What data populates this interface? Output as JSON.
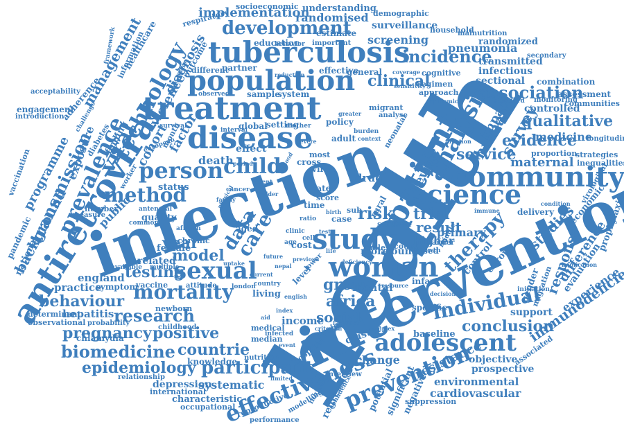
{
  "cloud": {
    "color": "#3f7fbd",
    "words": [
      {
        "text": "health"
      },
      {
        "text": "infection"
      },
      {
        "text": "intervention"
      },
      {
        "text": "treatment"
      },
      {
        "text": "tuberculosis"
      },
      {
        "text": "population"
      },
      {
        "text": "disease"
      },
      {
        "text": "antiretroviral"
      },
      {
        "text": "patient"
      },
      {
        "text": "community"
      },
      {
        "text": "woman"
      },
      {
        "text": "study"
      },
      {
        "text": "science"
      },
      {
        "text": "adolescent"
      },
      {
        "text": "sexual"
      },
      {
        "text": "mortality"
      },
      {
        "text": "person"
      },
      {
        "text": "child"
      },
      {
        "text": "method"
      },
      {
        "text": "development"
      },
      {
        "text": "analysis"
      },
      {
        "text": "prevalence"
      },
      {
        "text": "technology"
      },
      {
        "text": "transmission"
      },
      {
        "text": "effectiveness"
      },
      {
        "text": "prevention"
      },
      {
        "text": "participant"
      },
      {
        "text": "research"
      },
      {
        "text": "individual"
      },
      {
        "text": "biomedicine"
      },
      {
        "text": "epidemiology"
      },
      {
        "text": "therapy"
      },
      {
        "text": "viral"
      },
      {
        "text": "incidence"
      },
      {
        "text": "association"
      },
      {
        "text": "qualitative"
      },
      {
        "text": "evidence"
      },
      {
        "text": "service"
      },
      {
        "text": "conclusion"
      },
      {
        "text": "behaviour"
      },
      {
        "text": "pregnancy"
      },
      {
        "text": "positive"
      },
      {
        "text": "countrie"
      },
      {
        "text": "testing"
      },
      {
        "text": "group"
      },
      {
        "text": "africa"
      },
      {
        "text": "social"
      },
      {
        "text": "care"
      },
      {
        "text": "data"
      },
      {
        "text": "risk"
      },
      {
        "text": "trial"
      },
      {
        "text": "result"
      },
      {
        "text": "year"
      },
      {
        "text": "model"
      },
      {
        "text": "immunodeficiency"
      },
      {
        "text": "experience"
      },
      {
        "text": "response"
      },
      {
        "text": "difference"
      },
      {
        "text": "studies"
      },
      {
        "text": "survey"
      },
      {
        "text": "human"
      },
      {
        "text": "review"
      },
      {
        "text": "clinical"
      },
      {
        "text": "management"
      },
      {
        "text": "programme"
      },
      {
        "text": "background"
      },
      {
        "text": "exposure"
      },
      {
        "text": "violence"
      },
      {
        "text": "diagnosis"
      },
      {
        "text": "cohort"
      },
      {
        "text": "factor"
      },
      {
        "text": "implementation"
      },
      {
        "text": "randomised"
      },
      {
        "text": "understanding"
      },
      {
        "text": "surveillance"
      },
      {
        "text": "screening"
      },
      {
        "text": "pneumonia"
      },
      {
        "text": "maternal"
      },
      {
        "text": "medicine"
      },
      {
        "text": "controlled"
      },
      {
        "text": "impact"
      },
      {
        "text": "sectional"
      },
      {
        "text": "infectious"
      },
      {
        "text": "transmitted"
      },
      {
        "text": "systematic"
      },
      {
        "text": "change"
      },
      {
        "text": "resistance"
      },
      {
        "text": "cardiovascular"
      },
      {
        "text": "environmental"
      },
      {
        "text": "regression"
      },
      {
        "text": "hepatitis"
      },
      {
        "text": "england"
      },
      {
        "text": "practice"
      },
      {
        "text": "mental"
      },
      {
        "text": "income"
      },
      {
        "text": "cluster"
      },
      {
        "text": "primary"
      },
      {
        "text": "higher"
      },
      {
        "text": "control"
      },
      {
        "text": "europe"
      },
      {
        "text": "public"
      },
      {
        "text": "quality"
      },
      {
        "text": "related"
      },
      {
        "text": "symptom"
      },
      {
        "text": "vaccine"
      },
      {
        "text": "female"
      },
      {
        "text": "depression"
      },
      {
        "text": "knowledge"
      },
      {
        "text": "characteristic"
      },
      {
        "text": "international"
      },
      {
        "text": "occupational"
      },
      {
        "text": "reproductive"
      },
      {
        "text": "performance"
      },
      {
        "text": "modelling"
      },
      {
        "text": "death"
      },
      {
        "text": "effect"
      },
      {
        "text": "drug"
      },
      {
        "text": "more"
      },
      {
        "text": "young"
      },
      {
        "text": "cost"
      },
      {
        "text": "hospital"
      },
      {
        "text": "design"
      },
      {
        "text": "negative"
      },
      {
        "text": "potential"
      },
      {
        "text": "significant"
      },
      {
        "text": "suppression"
      },
      {
        "text": "prospective"
      },
      {
        "text": "objective"
      },
      {
        "text": "baseline"
      },
      {
        "text": "specific"
      },
      {
        "text": "support"
      },
      {
        "text": "gender"
      },
      {
        "text": "migration"
      },
      {
        "text": "associated"
      },
      {
        "text": "evaluation"
      },
      {
        "text": "prophylaxis"
      },
      {
        "text": "economic"
      },
      {
        "text": "delivery"
      },
      {
        "text": "virological"
      },
      {
        "text": "inequalities"
      },
      {
        "text": "strategies"
      },
      {
        "text": "proportion"
      },
      {
        "text": "longitudinal"
      },
      {
        "text": "communities"
      },
      {
        "text": "assessment"
      },
      {
        "text": "monitoring"
      },
      {
        "text": "combination"
      },
      {
        "text": "secondary"
      },
      {
        "text": "randomized"
      },
      {
        "text": "malnutrition"
      },
      {
        "text": "household"
      },
      {
        "text": "demographic"
      },
      {
        "text": "socioeconomic"
      },
      {
        "text": "education"
      },
      {
        "text": "estimate"
      },
      {
        "text": "respiratory"
      },
      {
        "text": "important"
      },
      {
        "text": "behavior"
      },
      {
        "text": "effective"
      },
      {
        "text": "general"
      },
      {
        "text": "cognitive"
      },
      {
        "text": "regimen"
      },
      {
        "text": "approach"
      },
      {
        "text": "partner"
      },
      {
        "text": "different"
      },
      {
        "text": "sample"
      },
      {
        "text": "system"
      },
      {
        "text": "setting"
      },
      {
        "text": "global"
      },
      {
        "text": "policy"
      },
      {
        "text": "adult"
      },
      {
        "text": "burden"
      },
      {
        "text": "most"
      },
      {
        "text": "virus"
      },
      {
        "text": "cross"
      },
      {
        "text": "status"
      },
      {
        "text": "number"
      },
      {
        "text": "aged"
      },
      {
        "text": "chronic"
      },
      {
        "text": "african"
      },
      {
        "text": "cancer"
      },
      {
        "text": "rural"
      },
      {
        "text": "level"
      },
      {
        "text": "lower"
      },
      {
        "text": "living"
      },
      {
        "text": "london"
      },
      {
        "text": "newborn"
      },
      {
        "text": "chlamydia"
      },
      {
        "text": "observational"
      },
      {
        "text": "determinant"
      },
      {
        "text": "national"
      },
      {
        "text": "pandemic"
      },
      {
        "text": "vaccination"
      },
      {
        "text": "engagement"
      },
      {
        "text": "introduction"
      },
      {
        "text": "acceptability"
      },
      {
        "text": "adherence"
      },
      {
        "text": "healthcare"
      },
      {
        "text": "information"
      },
      {
        "text": "outcome"
      },
      {
        "text": "finding"
      },
      {
        "text": "diabetes"
      },
      {
        "text": "worker"
      },
      {
        "text": "nutrition"
      },
      {
        "text": "relationship"
      },
      {
        "text": "month"
      },
      {
        "text": "case"
      },
      {
        "text": "rate"
      },
      {
        "text": "time"
      },
      {
        "text": "score"
      },
      {
        "text": "neonatal"
      },
      {
        "text": "infant"
      },
      {
        "text": "migrant"
      },
      {
        "text": "analyse"
      },
      {
        "text": "median"
      },
      {
        "text": "medical"
      },
      {
        "text": "infected"
      },
      {
        "text": "interview"
      },
      {
        "text": "inhibitor"
      },
      {
        "text": "confidence"
      },
      {
        "text": "childhood"
      },
      {
        "text": "probability"
      },
      {
        "text": "measure"
      },
      {
        "text": "available"
      },
      {
        "text": "multiple"
      },
      {
        "text": "attitude"
      },
      {
        "text": "country"
      },
      {
        "text": "sub"
      },
      {
        "text": "saharan"
      },
      {
        "text": "male"
      },
      {
        "text": "count"
      },
      {
        "text": "based"
      },
      {
        "text": "middle"
      },
      {
        "text": "barrier"
      },
      {
        "text": "growth"
      },
      {
        "text": "reduction"
      },
      {
        "text": "increase"
      },
      {
        "text": "observed"
      },
      {
        "text": "survival"
      },
      {
        "text": "european"
      },
      {
        "text": "antenatal"
      },
      {
        "text": "common"
      },
      {
        "text": "framework"
      },
      {
        "text": "challenge"
      },
      {
        "text": "interval"
      },
      {
        "text": "mother"
      },
      {
        "text": "greater"
      },
      {
        "text": "coverage"
      },
      {
        "text": "sensitivity"
      },
      {
        "text": "epidemic"
      },
      {
        "text": "standard"
      },
      {
        "text": "implication"
      },
      {
        "text": "condition"
      },
      {
        "text": "immune"
      },
      {
        "text": "initiation"
      },
      {
        "text": "future"
      },
      {
        "text": "uptake"
      },
      {
        "text": "birth"
      },
      {
        "text": "test"
      },
      {
        "text": "ratio"
      },
      {
        "text": "clinic"
      },
      {
        "text": "cell"
      },
      {
        "text": "age"
      },
      {
        "text": "resource"
      },
      {
        "text": "report"
      },
      {
        "text": "context"
      },
      {
        "text": "severe"
      },
      {
        "text": "period"
      },
      {
        "text": "blood"
      },
      {
        "text": "recent"
      },
      {
        "text": "older"
      },
      {
        "text": "family"
      },
      {
        "text": "physical"
      },
      {
        "text": "nepal"
      },
      {
        "text": "current"
      },
      {
        "text": "decision"
      },
      {
        "text": "function"
      },
      {
        "text": "criterion"
      },
      {
        "text": "facilities"
      },
      {
        "text": "complex"
      },
      {
        "text": "event"
      },
      {
        "text": "limited"
      },
      {
        "text": "previous"
      },
      {
        "text": "english"
      },
      {
        "text": "index"
      },
      {
        "text": "aid"
      },
      {
        "text": "life"
      },
      {
        "text": "deficiency"
      },
      {
        "text": "linked"
      },
      {
        "text": "national"
      },
      {
        "text": "record"
      },
      {
        "text": "focus"
      }
    ]
  }
}
